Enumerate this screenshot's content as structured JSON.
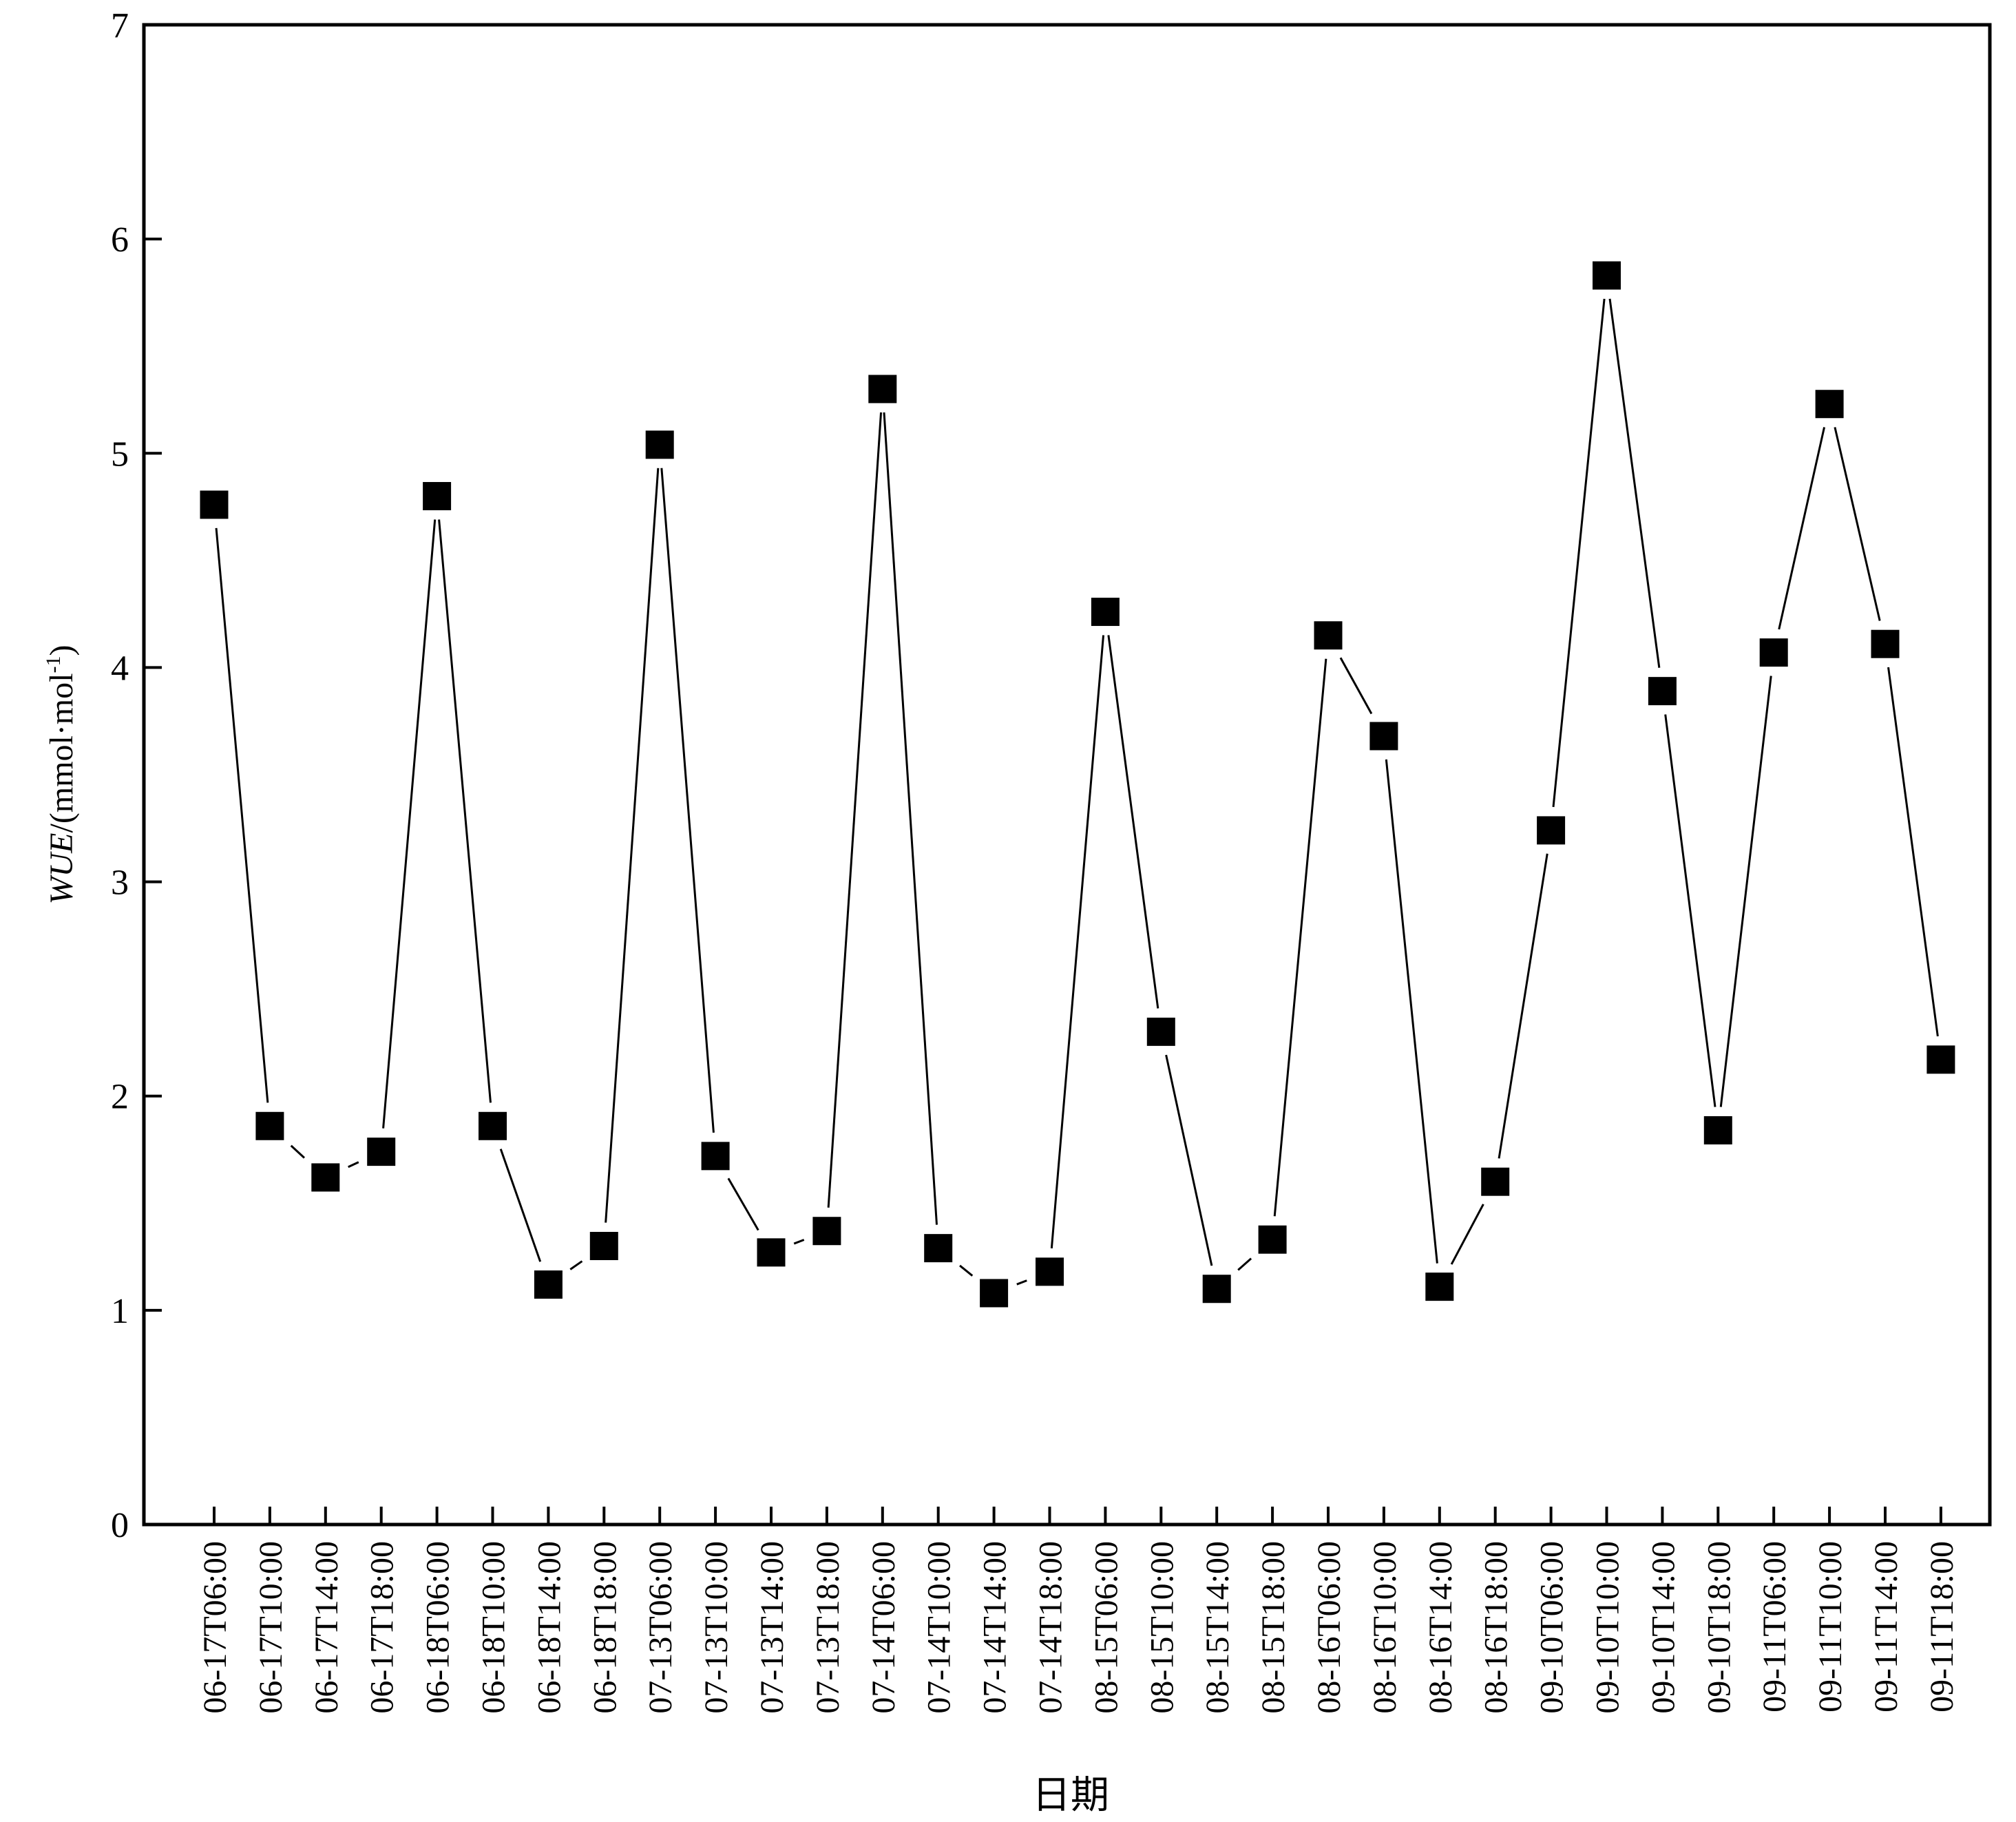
{
  "chart_data": {
    "type": "line",
    "title": "",
    "xlabel": "日期",
    "ylabel": {
      "italic": "WUE",
      "rest": "/(mmol·mol",
      "superscript": "-1",
      "close": ")"
    },
    "ylim": [
      0,
      7
    ],
    "yticks": [
      "0",
      "1",
      "2",
      "3",
      "4",
      "5",
      "6",
      "7"
    ],
    "grid": false,
    "legend": "none",
    "marker": "square",
    "line_color": "#000000",
    "marker_color": "#000000",
    "categories": [
      "06-17T06:00",
      "06-17T10:00",
      "06-17T14:00",
      "06-17T18:00",
      "06-18T06:00",
      "06-18T10:00",
      "06-18T14:00",
      "06-18T18:00",
      "07-13T06:00",
      "07-13T10:00",
      "07-13T14:00",
      "07-13T18:00",
      "07-14T06:00",
      "07-14T10:00",
      "07-14T14:00",
      "07-14T18:00",
      "08-15T06:00",
      "08-15T10:00",
      "08-15T14:00",
      "08-15T18:00",
      "08-16T06:00",
      "08-16T10:00",
      "08-16T14:00",
      "08-16T18:00",
      "09-10T06:00",
      "09-10T10:00",
      "09-10T14:00",
      "09-10T18:00",
      "09-11T06:00",
      "09-11T10:00",
      "09-11T14:00",
      "09-11T18:00"
    ],
    "series": [
      {
        "values": [
          4.76,
          1.86,
          1.62,
          1.74,
          4.8,
          1.86,
          1.12,
          1.3,
          5.04,
          1.72,
          1.27,
          1.37,
          5.3,
          1.29,
          1.08,
          1.18,
          4.26,
          2.3,
          1.1,
          1.33,
          4.15,
          3.68,
          1.11,
          1.6,
          3.24,
          5.83,
          3.89,
          1.84,
          4.07,
          5.23,
          4.11,
          2.17
        ]
      }
    ]
  }
}
